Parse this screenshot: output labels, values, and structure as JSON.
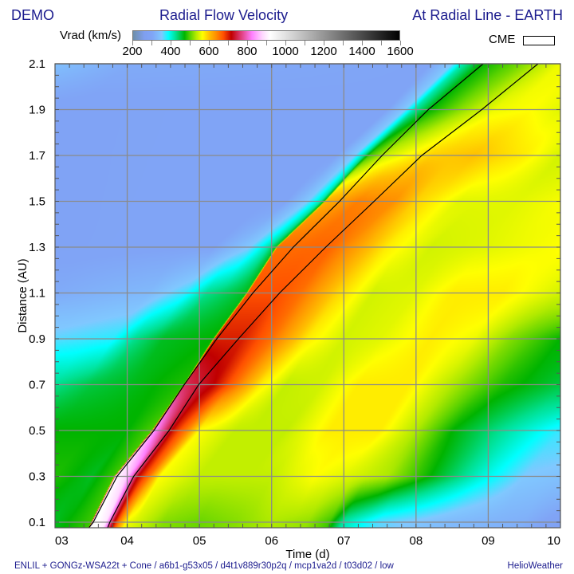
{
  "header": {
    "left": "DEMO",
    "title": "Radial Flow Velocity",
    "right": "At Radial Line - EARTH"
  },
  "colorbar": {
    "label": "Vrad (km/s)",
    "ticks": [
      "200",
      "400",
      "600",
      "800",
      "1000",
      "1200",
      "1400",
      "1600"
    ]
  },
  "legend": {
    "cme_label": "CME"
  },
  "footer": {
    "left": "ENLIL + GONGz-WSA22t + Cone / a6b1-g53x05 / d4t1v889r30p2q / mcp1va2d / t03d02 / low",
    "right": "HelioWeather"
  },
  "chart_data": {
    "type": "heatmap",
    "title": "Radial Flow Velocity",
    "xlabel": "Time (d)",
    "ylabel": "Distance (AU)",
    "zlabel": "Vrad (km/s)",
    "xlim": [
      3,
      10
    ],
    "ylim": [
      0.076,
      2.1
    ],
    "zlim": [
      200,
      1600
    ],
    "grid": true,
    "x_ticks": [
      {
        "v": 3,
        "label": "03"
      },
      {
        "v": 4,
        "label": "04"
      },
      {
        "v": 5,
        "label": "05"
      },
      {
        "v": 6,
        "label": "06"
      },
      {
        "v": 7,
        "label": "07"
      },
      {
        "v": 8,
        "label": "08"
      },
      {
        "v": 9,
        "label": "09"
      },
      {
        "v": 10,
        "label": "10"
      }
    ],
    "y_ticks": [
      {
        "v": 0.1,
        "label": "0.1"
      },
      {
        "v": 0.3,
        "label": "0.3"
      },
      {
        "v": 0.5,
        "label": "0.5"
      },
      {
        "v": 0.7,
        "label": "0.7"
      },
      {
        "v": 0.9,
        "label": "0.9"
      },
      {
        "v": 1.1,
        "label": "1.1"
      },
      {
        "v": 1.3,
        "label": "1.3"
      },
      {
        "v": 1.5,
        "label": "1.5"
      },
      {
        "v": 1.7,
        "label": "1.7"
      },
      {
        "v": 1.9,
        "label": "1.9"
      },
      {
        "v": 2.1,
        "label": "2.1"
      }
    ],
    "colormap": [
      [
        200,
        "#6f8faa"
      ],
      [
        260,
        "#7f9ff0"
      ],
      [
        300,
        "#80a4f6"
      ],
      [
        350,
        "#80c8ff"
      ],
      [
        385,
        "#00ffff"
      ],
      [
        425,
        "#00e090"
      ],
      [
        470,
        "#00b400"
      ],
      [
        500,
        "#5ad200"
      ],
      [
        530,
        "#b0ea00"
      ],
      [
        565,
        "#ffff00"
      ],
      [
        600,
        "#ffc000"
      ],
      [
        635,
        "#ff9000"
      ],
      [
        675,
        "#ff5000"
      ],
      [
        716,
        "#c00000"
      ],
      [
        770,
        "#e04080"
      ],
      [
        825,
        "#ff80ff"
      ],
      [
        880,
        "#ffd8ff"
      ],
      [
        920,
        "#ffffff"
      ],
      [
        1600,
        "#000000"
      ]
    ],
    "rows": [
      {
        "r": 0.1,
        "shock_t": 3.51,
        "knots": [
          [
            3.0,
            460
          ],
          [
            3.5,
            490
          ],
          [
            3.52,
            935
          ],
          [
            3.7,
            900
          ],
          [
            3.8,
            735
          ],
          [
            3.9,
            635
          ],
          [
            4.0,
            558
          ],
          [
            4.5,
            515
          ],
          [
            5.0,
            505
          ],
          [
            5.5,
            515
          ],
          [
            6.0,
            530
          ],
          [
            6.5,
            520
          ],
          [
            6.8,
            490
          ],
          [
            7.0,
            415
          ],
          [
            7.5,
            360
          ],
          [
            8.5,
            330
          ],
          [
            9.5,
            315
          ],
          [
            10,
            285
          ]
        ]
      },
      {
        "r": 0.3,
        "shock_t": 3.83,
        "knots": [
          [
            3.0,
            480
          ],
          [
            3.5,
            460
          ],
          [
            3.82,
            490
          ],
          [
            3.84,
            920
          ],
          [
            4.0,
            870
          ],
          [
            4.15,
            716
          ],
          [
            4.3,
            655
          ],
          [
            4.45,
            565
          ],
          [
            5.0,
            538
          ],
          [
            6.0,
            538
          ],
          [
            6.6,
            565
          ],
          [
            7.2,
            545
          ],
          [
            7.6,
            530
          ],
          [
            8.2,
            470
          ],
          [
            8.9,
            400
          ],
          [
            9.5,
            350
          ],
          [
            10,
            340
          ]
        ]
      },
      {
        "r": 0.5,
        "shock_t": 4.35,
        "knots": [
          [
            3.0,
            470
          ],
          [
            4.0,
            470
          ],
          [
            4.34,
            495
          ],
          [
            4.36,
            845
          ],
          [
            4.5,
            775
          ],
          [
            4.65,
            700
          ],
          [
            4.85,
            635
          ],
          [
            5.0,
            565
          ],
          [
            5.5,
            538
          ],
          [
            6.2,
            538
          ],
          [
            6.8,
            575
          ],
          [
            7.5,
            575
          ],
          [
            8.0,
            530
          ],
          [
            8.5,
            470
          ],
          [
            9.3,
            415
          ],
          [
            10,
            370
          ]
        ]
      },
      {
        "r": 0.7,
        "shock_t": 4.79,
        "knots": [
          [
            3.0,
            425
          ],
          [
            3.5,
            450
          ],
          [
            4.0,
            460
          ],
          [
            4.78,
            480
          ],
          [
            4.8,
            755
          ],
          [
            5.2,
            716
          ],
          [
            5.5,
            655
          ],
          [
            5.85,
            575
          ],
          [
            6.2,
            538
          ],
          [
            6.7,
            545
          ],
          [
            7.2,
            575
          ],
          [
            7.9,
            575
          ],
          [
            8.5,
            530
          ],
          [
            9.2,
            480
          ],
          [
            10,
            450
          ]
        ]
      },
      {
        "r": 0.9,
        "shock_t": 5.2,
        "knots": [
          [
            3.0,
            360
          ],
          [
            3.8,
            375
          ],
          [
            4.1,
            425
          ],
          [
            4.5,
            460
          ],
          [
            5.19,
            470
          ],
          [
            5.21,
            700
          ],
          [
            5.6,
            700
          ],
          [
            6.0,
            655
          ],
          [
            6.5,
            575
          ],
          [
            7.0,
            545
          ],
          [
            7.5,
            552
          ],
          [
            8.2,
            575
          ],
          [
            8.8,
            558
          ],
          [
            9.3,
            515
          ],
          [
            10,
            470
          ]
        ]
      },
      {
        "r": 1.1,
        "shock_t": 5.66,
        "knots": [
          [
            3.0,
            310
          ],
          [
            4.3,
            330
          ],
          [
            4.8,
            370
          ],
          [
            5.1,
            425
          ],
          [
            5.65,
            460
          ],
          [
            5.67,
            675
          ],
          [
            6.1,
            675
          ],
          [
            6.4,
            655
          ],
          [
            6.9,
            590
          ],
          [
            7.4,
            545
          ],
          [
            8.0,
            552
          ],
          [
            8.5,
            575
          ],
          [
            9.2,
            575
          ],
          [
            10,
            545
          ]
        ]
      },
      {
        "r": 1.3,
        "shock_t": 6.07,
        "knots": [
          [
            3.0,
            295
          ],
          [
            5.2,
            300
          ],
          [
            5.7,
            350
          ],
          [
            5.95,
            415
          ],
          [
            6.06,
            460
          ],
          [
            6.08,
            655
          ],
          [
            6.8,
            663
          ],
          [
            7.2,
            622
          ],
          [
            7.6,
            575
          ],
          [
            8.2,
            545
          ],
          [
            9.0,
            552
          ],
          [
            10,
            565
          ]
        ]
      },
      {
        "r": 1.5,
        "shock_t": 6.74,
        "knots": [
          [
            3.0,
            295
          ],
          [
            6.2,
            300
          ],
          [
            6.5,
            350
          ],
          [
            6.68,
            415
          ],
          [
            6.73,
            470
          ],
          [
            6.75,
            610
          ],
          [
            7.2,
            645
          ],
          [
            7.7,
            635
          ],
          [
            8.0,
            590
          ],
          [
            8.6,
            552
          ],
          [
            9.4,
            552
          ],
          [
            10,
            562
          ]
        ]
      },
      {
        "r": 1.7,
        "shock_t": 7.3,
        "knots": [
          [
            3.0,
            295
          ],
          [
            6.9,
            300
          ],
          [
            7.15,
            350
          ],
          [
            7.28,
            425
          ],
          [
            7.35,
            490
          ],
          [
            7.6,
            545
          ],
          [
            8.2,
            590
          ],
          [
            8.8,
            600
          ],
          [
            9.5,
            575
          ],
          [
            10,
            545
          ]
        ]
      },
      {
        "r": 1.9,
        "shock_t": 7.97,
        "knots": [
          [
            3.0,
            295
          ],
          [
            7.6,
            300
          ],
          [
            7.85,
            350
          ],
          [
            7.97,
            415
          ],
          [
            8.2,
            470
          ],
          [
            8.6,
            515
          ],
          [
            9.1,
            558
          ],
          [
            9.6,
            565
          ],
          [
            10,
            552
          ]
        ]
      },
      {
        "r": 2.1,
        "shock_t": 8.62,
        "knots": [
          [
            3.0,
            340
          ],
          [
            4.0,
            310
          ],
          [
            8.2,
            300
          ],
          [
            8.5,
            350
          ],
          [
            8.65,
            415
          ],
          [
            8.9,
            470
          ],
          [
            9.4,
            505
          ],
          [
            10,
            558
          ]
        ]
      }
    ],
    "cme_boundaries": [
      {
        "name": "CME leading edge",
        "points": [
          [
            3.47,
            0.076
          ],
          [
            3.53,
            0.1
          ],
          [
            3.86,
            0.3
          ],
          [
            4.37,
            0.5
          ],
          [
            4.79,
            0.7
          ],
          [
            5.24,
            0.9
          ],
          [
            5.74,
            1.1
          ],
          [
            6.3,
            1.3
          ],
          [
            6.94,
            1.5
          ],
          [
            7.53,
            1.7
          ],
          [
            8.17,
            1.9
          ],
          [
            8.93,
            2.1
          ]
        ]
      },
      {
        "name": "CME trailing edge",
        "points": [
          [
            3.73,
            0.076
          ],
          [
            3.76,
            0.1
          ],
          [
            4.09,
            0.3
          ],
          [
            4.58,
            0.5
          ],
          [
            4.99,
            0.7
          ],
          [
            5.54,
            0.9
          ],
          [
            6.11,
            1.1
          ],
          [
            6.75,
            1.3
          ],
          [
            7.42,
            1.5
          ],
          [
            8.08,
            1.7
          ],
          [
            8.91,
            1.9
          ],
          [
            9.69,
            2.1
          ]
        ]
      }
    ]
  }
}
